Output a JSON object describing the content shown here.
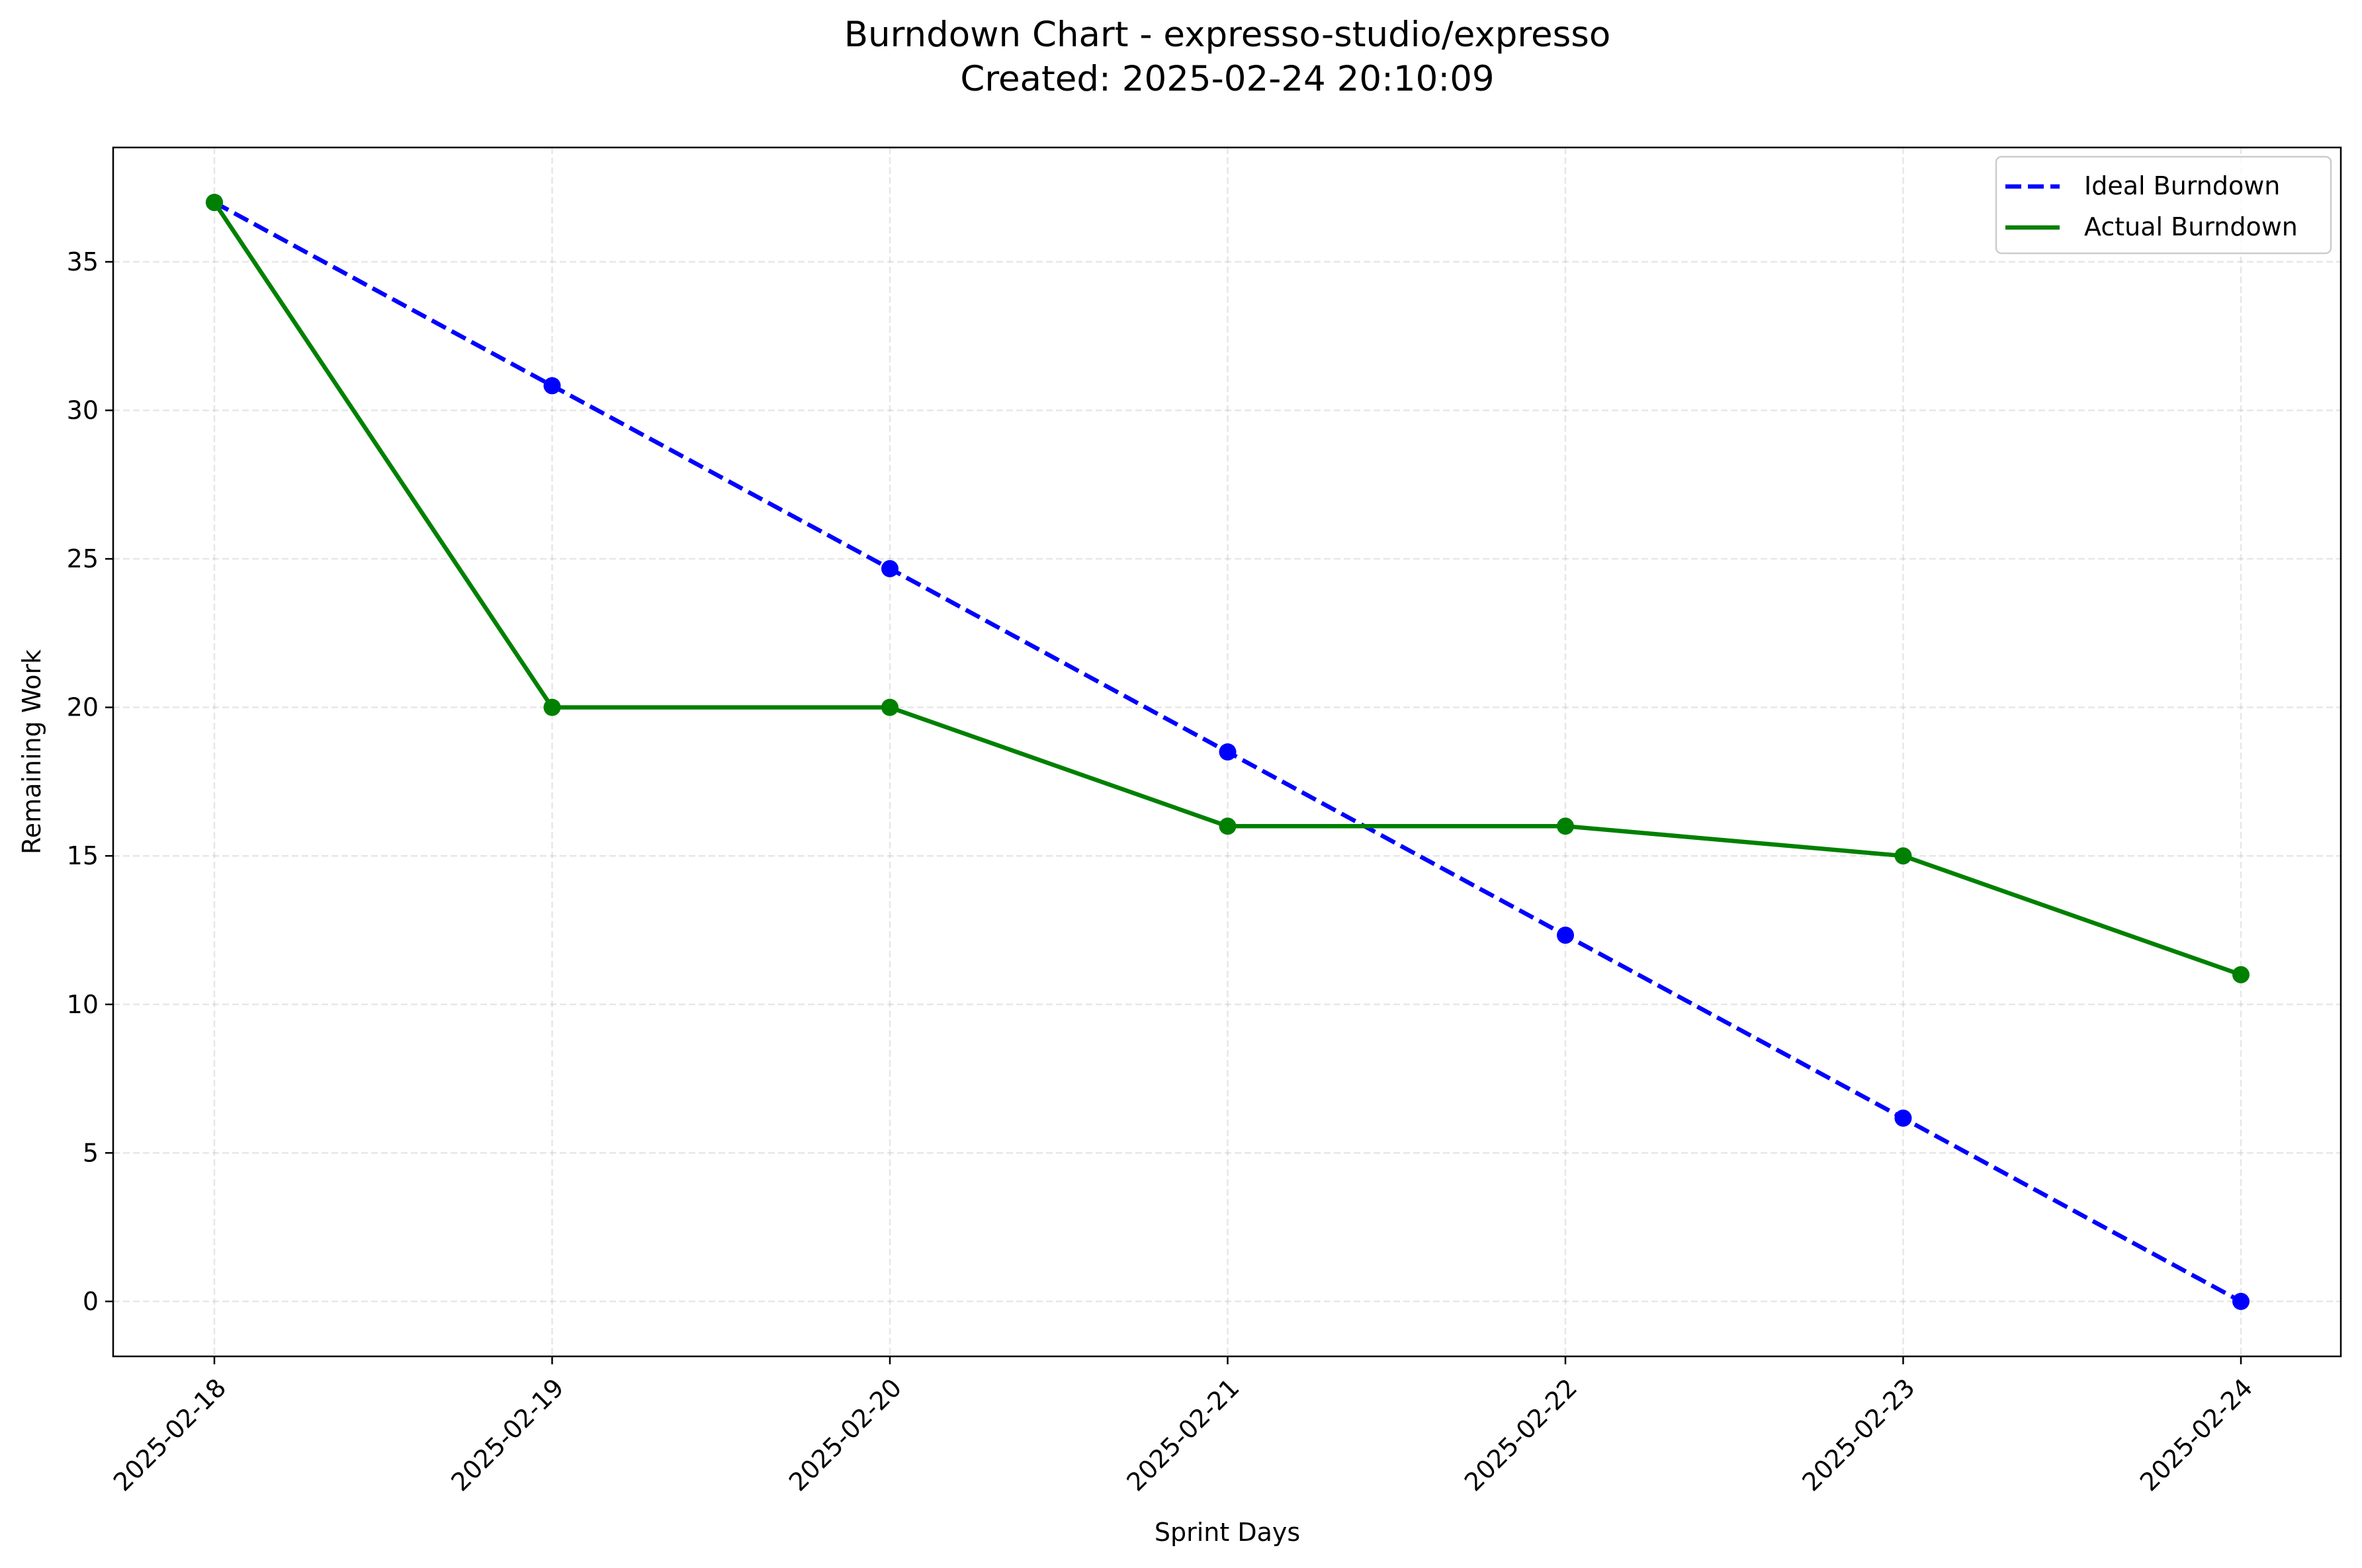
{
  "chart_data": {
    "type": "line",
    "title": "Burndown Chart - expresso-studio/expresso",
    "subtitle": "Created: 2025-02-24 20:10:09",
    "xlabel": "Sprint Days",
    "ylabel": "Remaining Work",
    "categories": [
      "2025-02-18",
      "2025-02-19",
      "2025-02-20",
      "2025-02-21",
      "2025-02-22",
      "2025-02-23",
      "2025-02-24"
    ],
    "ylim": [
      -1.85,
      38.85
    ],
    "yticks": [
      0,
      5,
      10,
      15,
      20,
      25,
      30,
      35
    ],
    "grid": true,
    "legend_position": "top-right",
    "series": [
      {
        "name": "Ideal Burndown",
        "values": [
          37,
          30.83,
          24.67,
          18.5,
          12.33,
          6.17,
          0
        ],
        "color": "#0000ff",
        "line_style": "dashed",
        "marker": "circle"
      },
      {
        "name": "Actual Burndown",
        "values": [
          37,
          20,
          20,
          16,
          16,
          15,
          11
        ],
        "color": "#008000",
        "line_style": "solid",
        "marker": "circle"
      }
    ]
  }
}
